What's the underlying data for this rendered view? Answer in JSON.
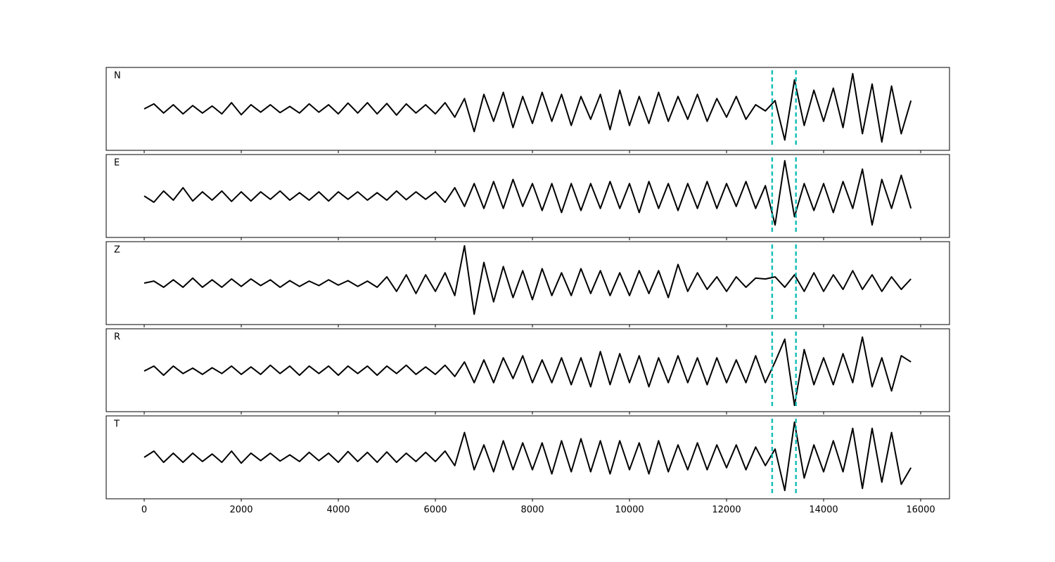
{
  "chart_data": {
    "type": "line",
    "x": [
      0,
      200,
      400,
      600,
      800,
      1000,
      1200,
      1400,
      1600,
      1800,
      2000,
      2200,
      2400,
      2600,
      2800,
      3000,
      3200,
      3400,
      3600,
      3800,
      4000,
      4200,
      4400,
      4600,
      4800,
      5000,
      5200,
      5400,
      5600,
      5800,
      6000,
      6200,
      6400,
      6600,
      6800,
      7000,
      7200,
      7400,
      7600,
      7800,
      8000,
      8200,
      8400,
      8600,
      8800,
      9000,
      9200,
      9400,
      9600,
      9800,
      10000,
      10200,
      10400,
      10600,
      10800,
      11000,
      11200,
      11400,
      11600,
      11800,
      12000,
      12200,
      12400,
      12600,
      12800,
      13000,
      13200,
      13400,
      13600,
      13800,
      14000,
      14200,
      14400,
      14600,
      14800,
      15000,
      15200,
      15400,
      15600,
      15800
    ],
    "series": [
      {
        "name": "N",
        "color": "#000000",
        "values": [
          0.0,
          0.12,
          -0.1,
          0.1,
          -0.12,
          0.08,
          -0.1,
          0.07,
          -0.12,
          0.15,
          -0.14,
          0.1,
          -0.08,
          0.1,
          -0.09,
          0.06,
          -0.1,
          0.12,
          -0.08,
          0.1,
          -0.12,
          0.14,
          -0.1,
          0.15,
          -0.12,
          0.13,
          -0.15,
          0.12,
          -0.1,
          0.1,
          -0.12,
          0.15,
          -0.2,
          0.25,
          -0.55,
          0.35,
          -0.3,
          0.4,
          -0.45,
          0.3,
          -0.35,
          0.4,
          -0.3,
          0.35,
          -0.4,
          0.3,
          -0.25,
          0.35,
          -0.5,
          0.45,
          -0.4,
          0.3,
          -0.35,
          0.4,
          -0.3,
          0.3,
          -0.25,
          0.35,
          -0.3,
          0.25,
          -0.2,
          0.3,
          -0.25,
          0.1,
          -0.05,
          0.2,
          -0.75,
          0.7,
          -0.4,
          0.45,
          -0.3,
          0.5,
          -0.45,
          0.85,
          -0.6,
          0.6,
          -0.8,
          0.55,
          -0.6,
          0.2
        ]
      },
      {
        "name": "E",
        "color": "#000000",
        "values": [
          0.0,
          -0.15,
          0.12,
          -0.1,
          0.2,
          -0.12,
          0.1,
          -0.1,
          0.12,
          -0.13,
          0.1,
          -0.12,
          0.1,
          -0.08,
          0.12,
          -0.1,
          0.08,
          -0.1,
          0.1,
          -0.12,
          0.1,
          -0.08,
          0.1,
          -0.1,
          0.08,
          -0.1,
          0.12,
          -0.09,
          0.1,
          -0.08,
          0.1,
          -0.15,
          0.2,
          -0.25,
          0.3,
          -0.3,
          0.35,
          -0.3,
          0.4,
          -0.25,
          0.3,
          -0.35,
          0.3,
          -0.4,
          0.3,
          -0.35,
          0.3,
          -0.3,
          0.35,
          -0.3,
          0.3,
          -0.4,
          0.35,
          -0.3,
          0.3,
          -0.35,
          0.3,
          -0.3,
          0.35,
          -0.3,
          0.3,
          -0.25,
          0.35,
          -0.3,
          0.25,
          -0.7,
          0.85,
          -0.5,
          0.3,
          -0.35,
          0.3,
          -0.4,
          0.35,
          -0.3,
          0.65,
          -0.7,
          0.4,
          -0.3,
          0.5,
          -0.3
        ]
      },
      {
        "name": "Z",
        "color": "#000000",
        "values": [
          0.0,
          0.05,
          -0.1,
          0.08,
          -0.1,
          0.12,
          -0.1,
          0.08,
          -0.1,
          0.1,
          -0.08,
          0.1,
          -0.06,
          0.08,
          -0.1,
          0.06,
          -0.08,
          0.05,
          -0.06,
          0.08,
          -0.05,
          0.06,
          -0.08,
          0.05,
          -0.1,
          0.15,
          -0.2,
          0.2,
          -0.25,
          0.2,
          -0.2,
          0.25,
          -0.3,
          0.9,
          -0.75,
          0.5,
          -0.45,
          0.4,
          -0.35,
          0.3,
          -0.4,
          0.35,
          -0.3,
          0.25,
          -0.3,
          0.35,
          -0.25,
          0.3,
          -0.3,
          0.25,
          -0.3,
          0.3,
          -0.25,
          0.3,
          -0.35,
          0.45,
          -0.2,
          0.25,
          -0.15,
          0.15,
          -0.2,
          0.15,
          -0.1,
          0.12,
          0.1,
          0.15,
          -0.1,
          0.2,
          -0.2,
          0.25,
          -0.2,
          0.2,
          -0.15,
          0.3,
          -0.15,
          0.2,
          -0.2,
          0.15,
          -0.15,
          0.1
        ]
      },
      {
        "name": "R",
        "color": "#000000",
        "values": [
          -0.02,
          0.1,
          -0.12,
          0.1,
          -0.08,
          0.05,
          -0.1,
          0.06,
          -0.08,
          0.1,
          -0.1,
          0.08,
          -0.1,
          0.12,
          -0.08,
          0.1,
          -0.12,
          0.1,
          -0.08,
          0.1,
          -0.12,
          0.1,
          -0.08,
          0.1,
          -0.12,
          0.1,
          -0.08,
          0.12,
          -0.1,
          0.08,
          -0.1,
          0.12,
          -0.15,
          0.2,
          -0.3,
          0.25,
          -0.3,
          0.3,
          -0.2,
          0.35,
          -0.3,
          0.25,
          -0.3,
          0.3,
          -0.35,
          0.3,
          -0.4,
          0.45,
          -0.35,
          0.4,
          -0.3,
          0.35,
          -0.4,
          0.3,
          -0.3,
          0.35,
          -0.3,
          0.3,
          -0.35,
          0.3,
          -0.3,
          0.25,
          -0.3,
          0.35,
          -0.3,
          0.2,
          0.75,
          -0.85,
          0.5,
          -0.35,
          0.3,
          -0.35,
          0.4,
          -0.3,
          0.8,
          -0.4,
          0.3,
          -0.5,
          0.35,
          0.2
        ]
      },
      {
        "name": "T",
        "color": "#000000",
        "values": [
          0.0,
          0.15,
          -0.12,
          0.1,
          -0.12,
          0.1,
          -0.1,
          0.08,
          -0.12,
          0.15,
          -0.14,
          0.1,
          -0.08,
          0.1,
          -0.09,
          0.06,
          -0.1,
          0.12,
          -0.08,
          0.1,
          -0.12,
          0.14,
          -0.1,
          0.12,
          -0.12,
          0.13,
          -0.12,
          0.1,
          -0.1,
          0.12,
          -0.1,
          0.15,
          -0.2,
          0.6,
          -0.3,
          0.3,
          -0.35,
          0.4,
          -0.3,
          0.35,
          -0.3,
          0.35,
          -0.4,
          0.4,
          -0.35,
          0.45,
          -0.35,
          0.4,
          -0.4,
          0.4,
          -0.3,
          0.35,
          -0.4,
          0.4,
          -0.35,
          0.3,
          -0.3,
          0.35,
          -0.3,
          0.3,
          -0.25,
          0.3,
          -0.3,
          0.25,
          -0.2,
          0.2,
          -0.8,
          0.85,
          -0.5,
          0.3,
          -0.35,
          0.4,
          -0.35,
          0.7,
          -0.75,
          0.7,
          -0.6,
          0.6,
          -0.65,
          -0.25
        ]
      }
    ],
    "vlines": {
      "color": "#17bfb8",
      "values": [
        12940,
        13430
      ]
    },
    "xlim": [
      -783,
      16594
    ],
    "xticks": [
      0,
      2000,
      4000,
      6000,
      8000,
      10000,
      12000,
      14000,
      16000
    ],
    "ylim": [
      -1,
      1
    ]
  }
}
